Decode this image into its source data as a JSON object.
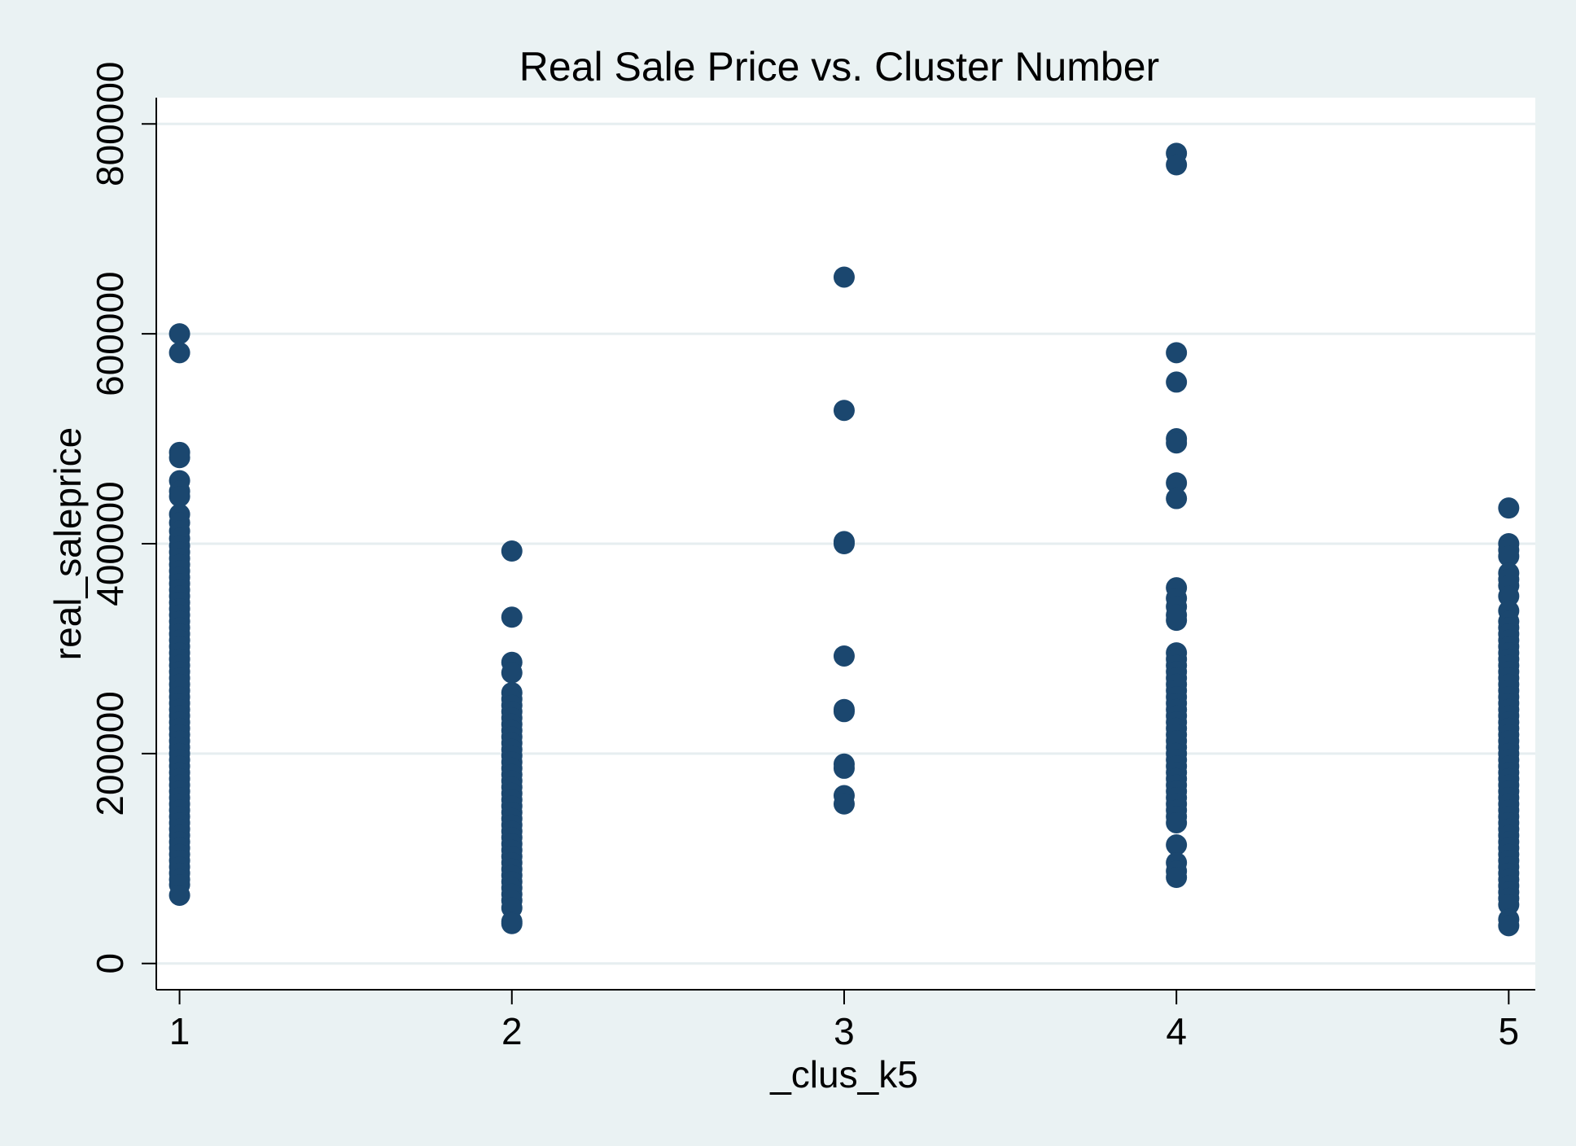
{
  "chart_data": {
    "type": "scatter",
    "title": "Real Sale Price vs. Cluster Number",
    "xlabel": "_clus_k5",
    "ylabel": "real_saleprice",
    "xlim": [
      0.93,
      5.08
    ],
    "ylim": [
      -25000,
      825000
    ],
    "xticks": [
      "1",
      "2",
      "3",
      "4",
      "5"
    ],
    "xtick_values": [
      1,
      2,
      3,
      4,
      5
    ],
    "yticks": [
      "0",
      "200000",
      "400000",
      "600000",
      "800000"
    ],
    "ytick_values": [
      0,
      200000,
      400000,
      600000,
      800000
    ],
    "grid": true,
    "legend": "none",
    "colors": {
      "marker": "#1b476f",
      "plot_bg": "#ffffff",
      "page_bg": "#eaf2f3",
      "grid": "#e6eef0"
    },
    "series": [
      {
        "x": 1,
        "y": [
          600000,
          582000,
          487000,
          482000,
          460000,
          450000,
          445000,
          428000,
          420000,
          412000,
          405000,
          398000,
          392000,
          386000,
          380000,
          374000,
          368000,
          362000,
          356000,
          350000,
          344000,
          338000,
          332000,
          326000,
          320000,
          314000,
          308000,
          302000,
          296000,
          290000,
          284000,
          278000,
          272000,
          266000,
          260000,
          254000,
          248000,
          242000,
          236000,
          230000,
          224000,
          218000,
          212000,
          206000,
          200000,
          194000,
          188000,
          182000,
          176000,
          170000,
          164000,
          158000,
          152000,
          146000,
          140000,
          134000,
          128000,
          122000,
          116000,
          110000,
          104000,
          98000,
          92000,
          86000,
          80000,
          75000,
          65000
        ]
      },
      {
        "x": 2,
        "y": [
          393000,
          330000,
          287000,
          277000,
          258000,
          252000,
          246000,
          240000,
          234000,
          228000,
          222000,
          216000,
          210000,
          204000,
          198000,
          192000,
          186000,
          180000,
          174000,
          168000,
          162000,
          156000,
          150000,
          144000,
          138000,
          132000,
          126000,
          120000,
          114000,
          108000,
          102000,
          96000,
          90000,
          84000,
          78000,
          72000,
          66000,
          60000,
          53000,
          40000,
          38000
        ]
      },
      {
        "x": 3,
        "y": [
          654000,
          527000,
          402000,
          400000,
          293000,
          242000,
          240000,
          190000,
          186000,
          160000,
          152000
        ]
      },
      {
        "x": 4,
        "y": [
          772000,
          761000,
          582000,
          554000,
          500000,
          496000,
          458000,
          443000,
          358000,
          348000,
          340000,
          332000,
          327000,
          296000,
          290000,
          284000,
          278000,
          272000,
          266000,
          260000,
          254000,
          248000,
          242000,
          236000,
          230000,
          224000,
          218000,
          212000,
          206000,
          200000,
          194000,
          188000,
          182000,
          176000,
          170000,
          164000,
          158000,
          152000,
          146000,
          140000,
          134000,
          113000,
          96000,
          88000,
          82000
        ]
      },
      {
        "x": 5,
        "y": [
          434000,
          400000,
          394000,
          388000,
          372000,
          366000,
          360000,
          350000,
          336000,
          326000,
          320000,
          314000,
          308000,
          302000,
          296000,
          290000,
          284000,
          278000,
          272000,
          266000,
          260000,
          254000,
          248000,
          242000,
          236000,
          230000,
          224000,
          218000,
          212000,
          206000,
          200000,
          194000,
          188000,
          182000,
          176000,
          170000,
          164000,
          158000,
          152000,
          146000,
          140000,
          134000,
          128000,
          122000,
          116000,
          110000,
          104000,
          98000,
          92000,
          86000,
          80000,
          74000,
          68000,
          62000,
          56000,
          42000,
          36000
        ]
      }
    ]
  }
}
